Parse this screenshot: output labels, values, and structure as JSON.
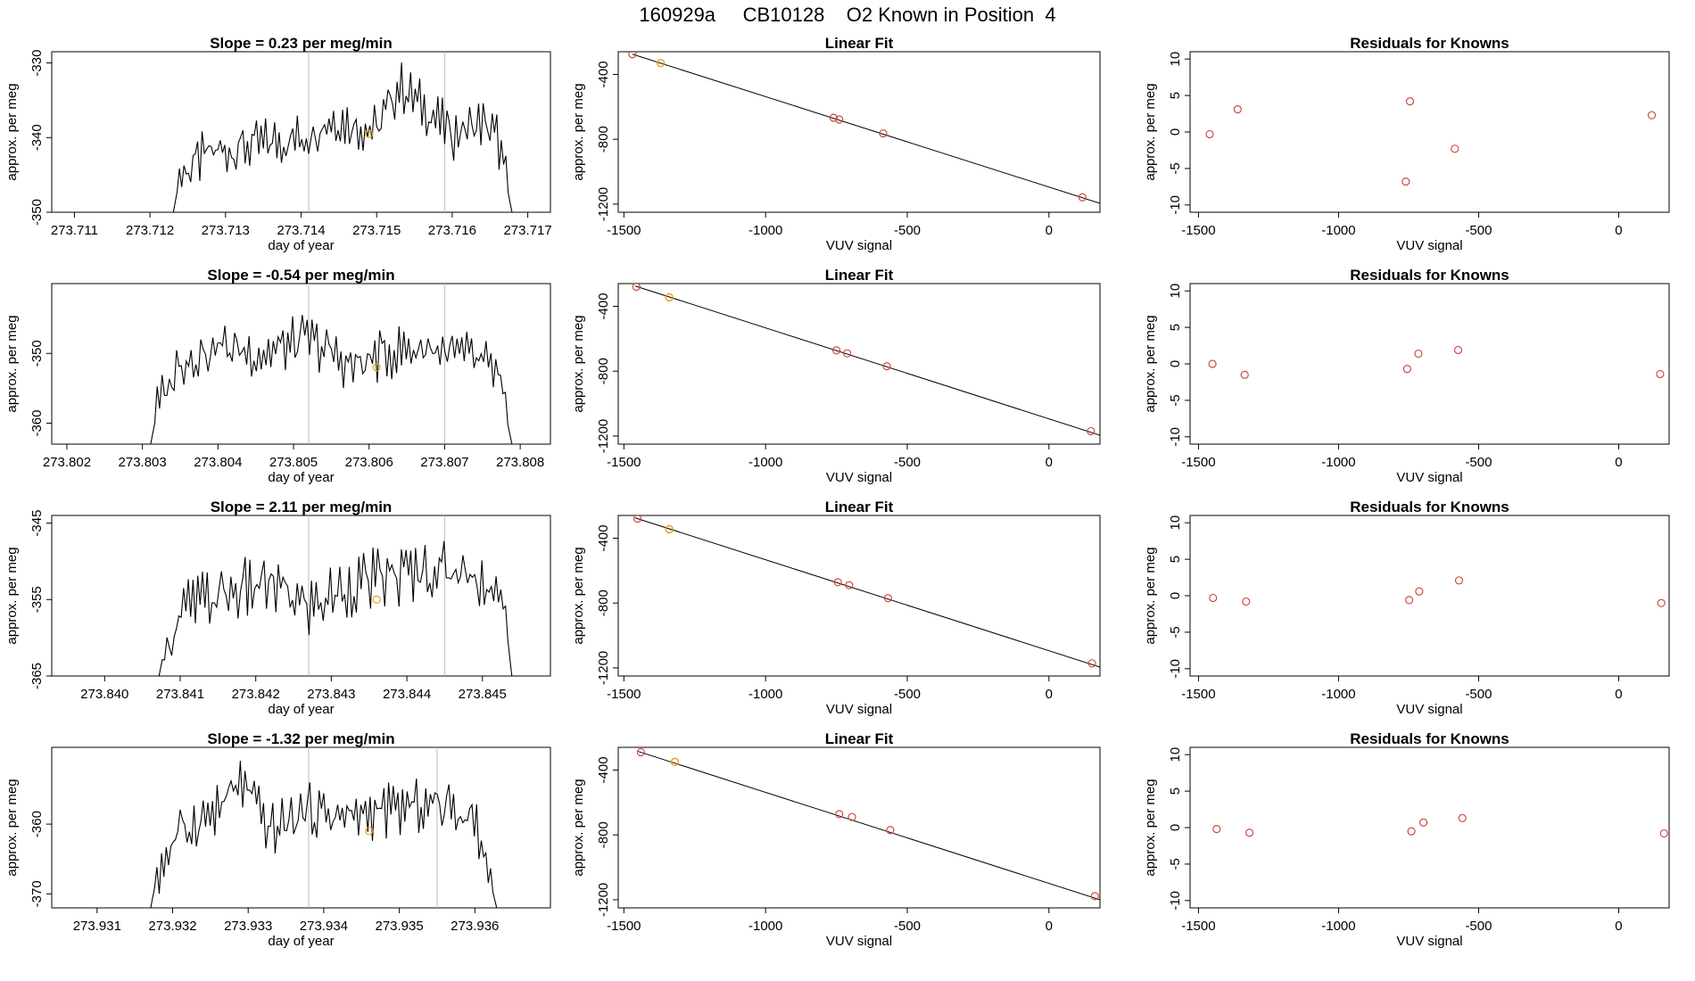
{
  "page_title": "160929a     CB10128    O2 Known in Position  4",
  "colors": {
    "line": "#000000",
    "known_point": "#E6A119",
    "linear_point": "#CC4C3F",
    "residual_point": "#CC4C3F",
    "vline": "#BBBBBB"
  },
  "chart_data": [
    {
      "type": "line",
      "title": "Slope =  0.23  per meg/min",
      "xlabel": "day of year",
      "ylabel": "approx. per meg",
      "xlim": [
        273.7107,
        273.7173
      ],
      "ylim": [
        -350,
        -328.5
      ],
      "xticks": [
        273.711,
        273.712,
        273.713,
        273.714,
        273.715,
        273.716,
        273.717
      ],
      "xtick_labels": [
        "273.711",
        "273.712",
        "273.713",
        "273.714",
        "273.715",
        "273.716",
        "273.717"
      ],
      "yticks": [
        -330,
        -340,
        -350
      ],
      "ytick_labels": [
        "-330",
        "-340",
        "-350"
      ],
      "vlines": [
        273.7141,
        273.7159
      ],
      "marker": {
        "x": 273.7149,
        "y": -339.5
      },
      "trace_anchors": [
        [
          273.7123,
          -350.5
        ],
        [
          273.7124,
          -345
        ],
        [
          273.7128,
          -342
        ],
        [
          273.7134,
          -341
        ],
        [
          273.714,
          -340
        ],
        [
          273.7144,
          -337.5
        ],
        [
          273.715,
          -339
        ],
        [
          273.7153,
          -333
        ],
        [
          273.716,
          -339.5
        ],
        [
          273.7164,
          -338
        ],
        [
          273.7166,
          -340
        ],
        [
          273.7168,
          -350.5
        ]
      ],
      "trace_amplitude": 3.2
    },
    {
      "type": "scatter",
      "title": "Linear Fit",
      "xlabel": "VUV signal",
      "ylabel": "approx. per meg",
      "xlim": [
        -1520,
        180
      ],
      "ylim": [
        -1250,
        -260
      ],
      "xticks": [
        -1500,
        -1000,
        -500,
        0
      ],
      "xtick_labels": [
        "-1500",
        "-1000",
        "-500",
        "0"
      ],
      "yticks": [
        -400,
        -800,
        -1200
      ],
      "ytick_labels": [
        "-400",
        "-800",
        "-1200"
      ],
      "fit_line": [
        [
          -1470,
          -275
        ],
        [
          180,
          -1195
        ]
      ],
      "points": [
        [
          -1470,
          -275
        ],
        [
          -760,
          -667
        ],
        [
          -740,
          -678
        ],
        [
          -585,
          -764
        ],
        [
          118,
          -1158
        ]
      ],
      "known_points": [
        [
          -1370,
          -330
        ]
      ]
    },
    {
      "type": "scatter",
      "title": "Residuals for Knowns",
      "xlabel": "VUV signal",
      "ylabel": "approx. per meg",
      "xlim": [
        -1530,
        180
      ],
      "ylim": [
        -11,
        11
      ],
      "xticks": [
        -1500,
        -1000,
        -500,
        0
      ],
      "xtick_labels": [
        "-1500",
        "-1000",
        "-500",
        "0"
      ],
      "yticks": [
        10,
        5,
        0,
        -5,
        -10
      ],
      "ytick_labels": [
        "10",
        "5",
        "0",
        "-5",
        "-10"
      ],
      "points": [
        [
          -1460,
          -0.3
        ],
        [
          -1360,
          3.1
        ],
        [
          -745,
          4.2
        ],
        [
          -760,
          -6.8
        ],
        [
          -585,
          -2.3
        ],
        [
          118,
          2.3
        ]
      ]
    },
    {
      "type": "line",
      "title": "Slope =  -0.54  per meg/min",
      "xlabel": "day of year",
      "ylabel": "approx. per meg",
      "xlim": [
        273.8018,
        273.8084
      ],
      "ylim": [
        -363,
        -340
      ],
      "xticks": [
        273.802,
        273.803,
        273.804,
        273.805,
        273.806,
        273.807,
        273.808
      ],
      "xtick_labels": [
        "273.802",
        "273.803",
        "273.804",
        "273.805",
        "273.806",
        "273.807",
        "273.808"
      ],
      "yticks": [
        -350,
        -360
      ],
      "ytick_labels": [
        "-350",
        "-360"
      ],
      "vlines": [
        273.8052,
        273.807
      ],
      "marker": {
        "x": 273.8061,
        "y": -352
      },
      "trace_anchors": [
        [
          273.8031,
          -363.5
        ],
        [
          273.8032,
          -358
        ],
        [
          273.8035,
          -351
        ],
        [
          273.804,
          -349
        ],
        [
          273.8046,
          -350
        ],
        [
          273.8052,
          -348
        ],
        [
          273.8058,
          -352
        ],
        [
          273.8062,
          -350
        ],
        [
          273.8068,
          -349
        ],
        [
          273.8074,
          -351
        ],
        [
          273.8077,
          -353
        ],
        [
          273.8079,
          -363.5
        ]
      ],
      "trace_amplitude": 3.5
    },
    {
      "type": "scatter",
      "title": "Linear Fit",
      "xlabel": "VUV signal",
      "ylabel": "approx. per meg",
      "xlim": [
        -1520,
        180
      ],
      "ylim": [
        -1250,
        -260
      ],
      "xticks": [
        -1500,
        -1000,
        -500,
        0
      ],
      "xtick_labels": [
        "-1500",
        "-1000",
        "-500",
        "0"
      ],
      "yticks": [
        -400,
        -800,
        -1200
      ],
      "ytick_labels": [
        "-400",
        "-800",
        "-1200"
      ],
      "fit_line": [
        [
          -1460,
          -275
        ],
        [
          180,
          -1195
        ]
      ],
      "points": [
        [
          -1456,
          -280
        ],
        [
          -750,
          -672
        ],
        [
          -712,
          -690
        ],
        [
          -572,
          -770
        ],
        [
          148,
          -1170
        ]
      ],
      "known_points": [
        [
          -1340,
          -345
        ]
      ]
    },
    {
      "type": "scatter",
      "title": "Residuals for Knowns",
      "xlabel": "VUV signal",
      "ylabel": "approx. per meg",
      "xlim": [
        -1530,
        180
      ],
      "ylim": [
        -11,
        11
      ],
      "xticks": [
        -1500,
        -1000,
        -500,
        0
      ],
      "xtick_labels": [
        "-1500",
        "-1000",
        "-500",
        "0"
      ],
      "yticks": [
        10,
        5,
        0,
        -5,
        -10
      ],
      "ytick_labels": [
        "10",
        "5",
        "0",
        "-5",
        "-10"
      ],
      "points": [
        [
          -1450,
          0
        ],
        [
          -1335,
          -1.5
        ],
        [
          -755,
          -0.7
        ],
        [
          -715,
          1.4
        ],
        [
          -573,
          1.9
        ],
        [
          148,
          -1.4
        ]
      ]
    },
    {
      "type": "line",
      "title": "Slope =  2.11  per meg/min",
      "xlabel": "day of year",
      "ylabel": "approx. per meg",
      "xlim": [
        273.8393,
        273.8459
      ],
      "ylim": [
        -365,
        -344
      ],
      "xticks": [
        273.84,
        273.841,
        273.842,
        273.843,
        273.844,
        273.845
      ],
      "xtick_labels": [
        "273.840",
        "273.841",
        "273.842",
        "273.843",
        "273.844",
        "273.845"
      ],
      "yticks": [
        -345,
        -355,
        -365
      ],
      "ytick_labels": [
        "-345",
        "-355",
        "-365"
      ],
      "vlines": [
        273.8427,
        273.8445
      ],
      "marker": {
        "x": 273.8436,
        "y": -355
      },
      "trace_anchors": [
        [
          273.8407,
          -366
        ],
        [
          273.8408,
          -361
        ],
        [
          273.8411,
          -356
        ],
        [
          273.8417,
          -354
        ],
        [
          273.8422,
          -353
        ],
        [
          273.8427,
          -356
        ],
        [
          273.8433,
          -353
        ],
        [
          273.8438,
          -352
        ],
        [
          273.8444,
          -351
        ],
        [
          273.845,
          -352
        ],
        [
          273.8453,
          -357
        ],
        [
          273.8454,
          -366
        ]
      ],
      "trace_amplitude": 3.8
    },
    {
      "type": "scatter",
      "title": "Linear Fit",
      "xlabel": "VUV signal",
      "ylabel": "approx. per meg",
      "xlim": [
        -1520,
        180
      ],
      "ylim": [
        -1250,
        -260
      ],
      "xticks": [
        -1500,
        -1000,
        -500,
        0
      ],
      "xtick_labels": [
        "-1500",
        "-1000",
        "-500",
        "0"
      ],
      "yticks": [
        -400,
        -800,
        -1200
      ],
      "ytick_labels": [
        "-400",
        "-800",
        "-1200"
      ],
      "fit_line": [
        [
          -1460,
          -275
        ],
        [
          180,
          -1195
        ]
      ],
      "points": [
        [
          -1452,
          -280
        ],
        [
          -745,
          -672
        ],
        [
          -705,
          -690
        ],
        [
          -568,
          -770
        ],
        [
          152,
          -1172
        ]
      ],
      "known_points": [
        [
          -1340,
          -345
        ]
      ]
    },
    {
      "type": "scatter",
      "title": "Residuals for Knowns",
      "xlabel": "VUV signal",
      "ylabel": "approx. per meg",
      "xlim": [
        -1530,
        180
      ],
      "ylim": [
        -11,
        11
      ],
      "xticks": [
        -1500,
        -1000,
        -500,
        0
      ],
      "xtick_labels": [
        "-1500",
        "-1000",
        "-500",
        "0"
      ],
      "yticks": [
        10,
        5,
        0,
        -5,
        -10
      ],
      "ytick_labels": [
        "10",
        "5",
        "0",
        "-5",
        "-10"
      ],
      "points": [
        [
          -1448,
          -0.3
        ],
        [
          -1330,
          -0.8
        ],
        [
          -748,
          -0.6
        ],
        [
          -712,
          0.6
        ],
        [
          -570,
          2.1
        ],
        [
          152,
          -1.0
        ]
      ]
    },
    {
      "type": "line",
      "title": "Slope =  -1.32  per meg/min",
      "xlabel": "day of year",
      "ylabel": "approx. per meg",
      "xlim": [
        273.9304,
        273.937
      ],
      "ylim": [
        -372,
        -349
      ],
      "xticks": [
        273.931,
        273.932,
        273.933,
        273.934,
        273.935,
        273.936
      ],
      "xtick_labels": [
        "273.931",
        "273.932",
        "273.933",
        "273.934",
        "273.935",
        "273.936"
      ],
      "yticks": [
        -360,
        -370
      ],
      "ytick_labels": [
        "-360",
        "-370"
      ],
      "vlines": [
        273.9338,
        273.9355
      ],
      "marker": {
        "x": 273.9346,
        "y": -361
      },
      "trace_anchors": [
        [
          273.9317,
          -372.5
        ],
        [
          273.9318,
          -367
        ],
        [
          273.9321,
          -361
        ],
        [
          273.9326,
          -358
        ],
        [
          273.9329,
          -354
        ],
        [
          273.9333,
          -361
        ],
        [
          273.9338,
          -358
        ],
        [
          273.9343,
          -359
        ],
        [
          273.9349,
          -358
        ],
        [
          273.9355,
          -357
        ],
        [
          273.936,
          -359
        ],
        [
          273.9363,
          -372.5
        ]
      ],
      "trace_amplitude": 3.5
    },
    {
      "type": "scatter",
      "title": "Linear Fit",
      "xlabel": "VUV signal",
      "ylabel": "approx. per meg",
      "xlim": [
        -1520,
        180
      ],
      "ylim": [
        -1250,
        -260
      ],
      "xticks": [
        -1500,
        -1000,
        -500,
        0
      ],
      "xtick_labels": [
        "-1500",
        "-1000",
        "-500",
        "0"
      ],
      "yticks": [
        -400,
        -800,
        -1200
      ],
      "ytick_labels": [
        "-400",
        "-800",
        "-1200"
      ],
      "fit_line": [
        [
          -1450,
          -285
        ],
        [
          180,
          -1200
        ]
      ],
      "points": [
        [
          -1440,
          -290
        ],
        [
          -740,
          -672
        ],
        [
          -695,
          -690
        ],
        [
          -560,
          -770
        ],
        [
          162,
          -1178
        ]
      ],
      "known_points": [
        [
          -1320,
          -350
        ]
      ]
    },
    {
      "type": "scatter",
      "title": "Residuals for Knowns",
      "xlabel": "VUV signal",
      "ylabel": "approx. per meg",
      "xlim": [
        -1530,
        180
      ],
      "ylim": [
        -11,
        11
      ],
      "xticks": [
        -1500,
        -1000,
        -500,
        0
      ],
      "xtick_labels": [
        "-1500",
        "-1000",
        "-500",
        "0"
      ],
      "yticks": [
        10,
        5,
        0,
        -5,
        -10
      ],
      "ytick_labels": [
        "10",
        "5",
        "0",
        "-5",
        "-10"
      ],
      "points": [
        [
          -1435,
          -0.2
        ],
        [
          -1318,
          -0.7
        ],
        [
          -740,
          -0.5
        ],
        [
          -697,
          0.7
        ],
        [
          -558,
          1.3
        ],
        [
          162,
          -0.8
        ]
      ]
    }
  ]
}
